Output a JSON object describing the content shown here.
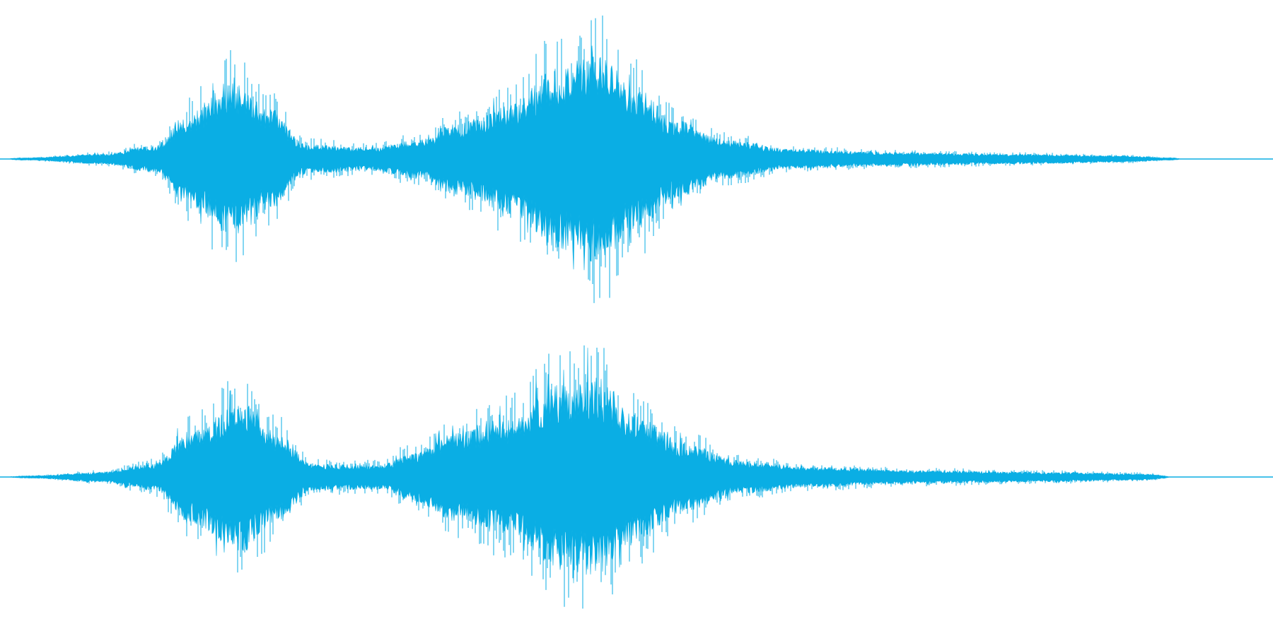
{
  "waveform": {
    "color": "#0aaee4",
    "background": "#ffffff",
    "channels": [
      {
        "channel": "top",
        "envelope_peaks": [
          {
            "t": 0.0,
            "a": 0.0
          },
          {
            "t": 0.02,
            "a": 0.008
          },
          {
            "t": 0.08,
            "a": 0.03
          },
          {
            "t": 0.12,
            "a": 0.08
          },
          {
            "t": 0.15,
            "a": 0.29
          },
          {
            "t": 0.18,
            "a": 0.47
          },
          {
            "t": 0.21,
            "a": 0.32
          },
          {
            "t": 0.24,
            "a": 0.09
          },
          {
            "t": 0.29,
            "a": 0.07
          },
          {
            "t": 0.33,
            "a": 0.12
          },
          {
            "t": 0.36,
            "a": 0.22
          },
          {
            "t": 0.4,
            "a": 0.33
          },
          {
            "t": 0.44,
            "a": 0.56
          },
          {
            "t": 0.47,
            "a": 0.64
          },
          {
            "t": 0.5,
            "a": 0.43
          },
          {
            "t": 0.53,
            "a": 0.24
          },
          {
            "t": 0.57,
            "a": 0.12
          },
          {
            "t": 0.62,
            "a": 0.06
          },
          {
            "t": 0.7,
            "a": 0.04
          },
          {
            "t": 0.8,
            "a": 0.03
          },
          {
            "t": 0.88,
            "a": 0.02
          },
          {
            "t": 0.92,
            "a": 0.008
          },
          {
            "t": 0.93,
            "a": 0.0
          },
          {
            "t": 1.0,
            "a": 0.0
          }
        ]
      },
      {
        "channel": "bottom",
        "envelope_peaks": [
          {
            "t": 0.0,
            "a": 0.0
          },
          {
            "t": 0.025,
            "a": 0.008
          },
          {
            "t": 0.08,
            "a": 0.03
          },
          {
            "t": 0.12,
            "a": 0.08
          },
          {
            "t": 0.15,
            "a": 0.28
          },
          {
            "t": 0.19,
            "a": 0.45
          },
          {
            "t": 0.22,
            "a": 0.26
          },
          {
            "t": 0.245,
            "a": 0.08
          },
          {
            "t": 0.3,
            "a": 0.075
          },
          {
            "t": 0.32,
            "a": 0.14
          },
          {
            "t": 0.36,
            "a": 0.27
          },
          {
            "t": 0.4,
            "a": 0.36
          },
          {
            "t": 0.44,
            "a": 0.56
          },
          {
            "t": 0.47,
            "a": 0.6
          },
          {
            "t": 0.5,
            "a": 0.38
          },
          {
            "t": 0.54,
            "a": 0.2
          },
          {
            "t": 0.58,
            "a": 0.1
          },
          {
            "t": 0.64,
            "a": 0.06
          },
          {
            "t": 0.72,
            "a": 0.04
          },
          {
            "t": 0.82,
            "a": 0.03
          },
          {
            "t": 0.9,
            "a": 0.02
          },
          {
            "t": 0.915,
            "a": 0.008
          },
          {
            "t": 0.92,
            "a": 0.0
          },
          {
            "t": 1.0,
            "a": 0.0
          }
        ]
      }
    ]
  }
}
